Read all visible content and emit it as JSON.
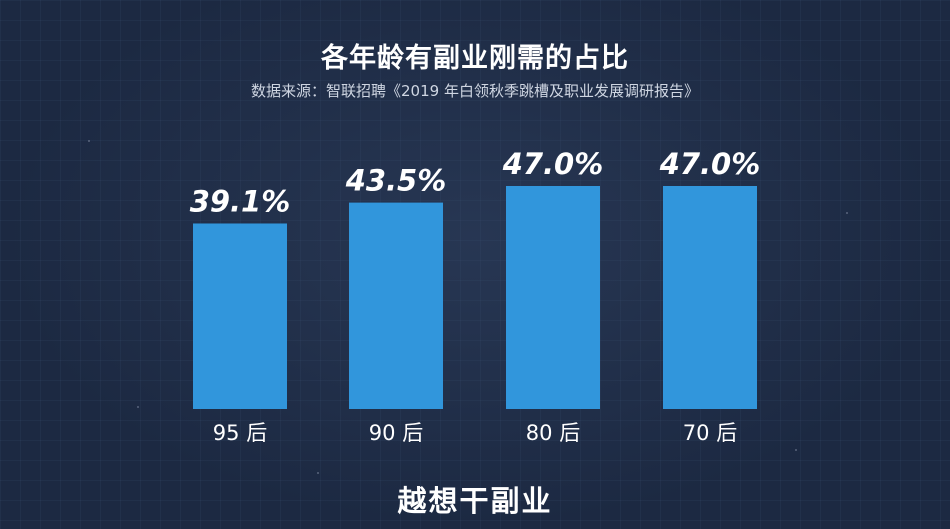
{
  "title": "各年龄有副业刚需的占比",
  "source": "数据来源：智联招聘《2019 年白领秋季跳槽及职业发展调研报告》",
  "subtitle": "越想干副业",
  "colors": {
    "background": "#1c2942",
    "bar": "#3196dc",
    "text": "#ffffff"
  },
  "chart_data": {
    "type": "bar",
    "title": "各年龄有副业刚需的占比",
    "categories": [
      "95 后",
      "90 后",
      "80 后",
      "70 后"
    ],
    "values": [
      39.1,
      43.5,
      47.0,
      47.0
    ],
    "value_labels": [
      "39.1%",
      "43.5%",
      "47.0%",
      "47.0%"
    ],
    "unit": "%",
    "xlabel": "",
    "ylabel": "",
    "ylim": [
      0,
      47
    ],
    "grid": false,
    "legend": "none"
  }
}
